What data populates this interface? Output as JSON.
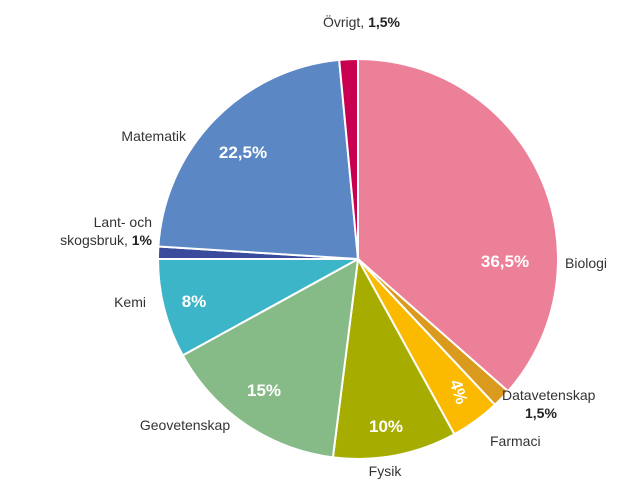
{
  "chart_data": {
    "type": "pie",
    "categories": [
      "Biologi",
      "Datavetenskap",
      "Farmaci",
      "Fysik",
      "Geovetenskap",
      "Kemi",
      "Lant- och skogsbruk,",
      "Matematik",
      "Övrigt,"
    ],
    "values": [
      36.5,
      1.5,
      4,
      10,
      15,
      8,
      1,
      22.5,
      1.5
    ],
    "value_labels": [
      "36,5%",
      "1,5%",
      "4%",
      "10%",
      "15%",
      "8%",
      "1%",
      "22,5%",
      "1,5%"
    ],
    "colors": [
      "#ed8099",
      "#d99a1e",
      "#fbb900",
      "#a6ad00",
      "#86bb87",
      "#3db5c8",
      "#3a4b9e",
      "#5b87c5",
      "#c8004f"
    ]
  }
}
